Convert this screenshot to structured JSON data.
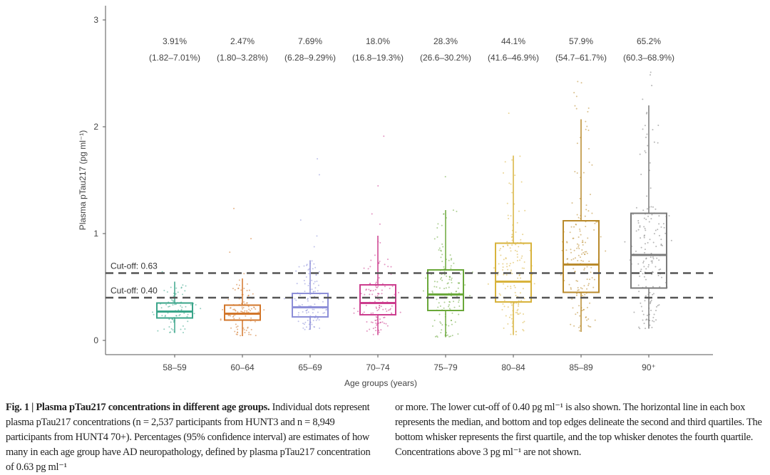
{
  "chart_data": {
    "type": "box",
    "xlabel": "Age groups (years)",
    "ylabel": "Plasma pTau217 (pg ml⁻¹)",
    "ylim": [
      0,
      3
    ],
    "yticks": [
      "0",
      "1",
      "2",
      "3"
    ],
    "categories": [
      "58–59",
      "60–64",
      "65–69",
      "70–74",
      "75–79",
      "80–84",
      "85–89",
      "90⁺"
    ],
    "colors": [
      "#3aa58a",
      "#d2762a",
      "#8d8fd8",
      "#cc3d8e",
      "#6aa83a",
      "#d8b33c",
      "#b98a2c",
      "#7a7a7a"
    ],
    "percentages": [
      "3.91%",
      "2.47%",
      "7.69%",
      "18.0%",
      "28.3%",
      "44.1%",
      "57.9%",
      "65.2%"
    ],
    "confidence_intervals": [
      "(1.82–7.01%)",
      "(1.80–3.28%)",
      "(6.28–9.29%)",
      "(16.8–19.3%)",
      "(26.6–30.2%)",
      "(41.6–46.9%)",
      "(54.7–61.7%)",
      "(60.3–68.9%)"
    ],
    "boxes": [
      {
        "min": 0.07,
        "q1": 0.21,
        "median": 0.27,
        "q3": 0.35,
        "max": 0.55
      },
      {
        "min": 0.04,
        "q1": 0.19,
        "median": 0.25,
        "q3": 0.33,
        "max": 0.58
      },
      {
        "min": 0.1,
        "q1": 0.22,
        "median": 0.31,
        "q3": 0.44,
        "max": 0.75
      },
      {
        "min": 0.05,
        "q1": 0.24,
        "median": 0.35,
        "q3": 0.52,
        "max": 0.98
      },
      {
        "min": 0.03,
        "q1": 0.28,
        "median": 0.43,
        "q3": 0.66,
        "max": 1.22
      },
      {
        "min": 0.05,
        "q1": 0.36,
        "median": 0.55,
        "q3": 0.91,
        "max": 1.73
      },
      {
        "min": 0.08,
        "q1": 0.45,
        "median": 0.71,
        "q3": 1.12,
        "max": 2.07
      },
      {
        "min": 0.11,
        "q1": 0.49,
        "median": 0.8,
        "q3": 1.19,
        "max": 2.2
      }
    ],
    "cutoffs": [
      {
        "value": 0.63,
        "label": "Cut-off: 0.63"
      },
      {
        "value": 0.4,
        "label": "Cut-off: 0.40"
      }
    ],
    "grid": false
  },
  "caption": {
    "title": "Fig. 1 | Plasma pTau217 concentrations in different age groups.",
    "left": " Individual dots represent plasma pTau217 concentrations (n = 2,537 participants from HUNT3 and n = 8,949 participants from HUNT4 70+). Percentages (95% confidence interval) are estimates of how many in each age group have AD neuropathology, defined by plasma pTau217 concentration of 0.63 pg ml⁻¹",
    "right": "or more. The lower cut-off of 0.40 pg ml⁻¹ is also shown. The horizontal line in each box represents the median, and bottom and top edges delineate the second and third quartiles. The bottom whisker represents the first quartile, and the top whisker denotes the fourth quartile. Concentrations above 3 pg ml⁻¹ are not shown."
  }
}
